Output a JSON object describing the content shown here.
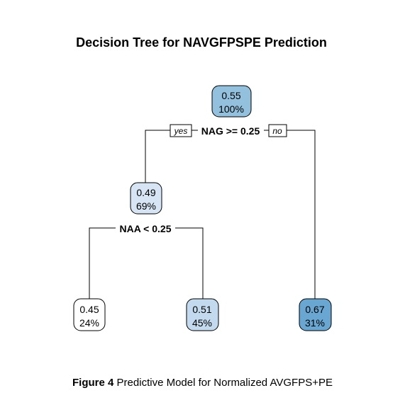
{
  "title": "Decision Tree for NAVGFPSPE Prediction",
  "colors": {
    "node_root": "#92c0dd",
    "node_mid": "#d6e4f3",
    "node_leaf_low": "#ffffff",
    "node_leaf_mid": "#c3d9ee",
    "node_leaf_high": "#6aa6d2",
    "stroke": "#000000"
  },
  "nodes": {
    "root": {
      "value": "0.55",
      "percent": "100%"
    },
    "left": {
      "value": "0.49",
      "percent": "69%"
    },
    "leaf_1": {
      "value": "0.45",
      "percent": "24%"
    },
    "leaf_2": {
      "value": "0.51",
      "percent": "45%"
    },
    "leaf_3": {
      "value": "0.67",
      "percent": "31%"
    }
  },
  "splits": {
    "root": "NAG >= 0.25",
    "left": "NAA < 0.25"
  },
  "branch_labels": {
    "yes": "yes",
    "no": "no"
  },
  "caption": {
    "figure_label": "Figure 4",
    "text": "Predictive Model for Normalized AVGFPS+PE"
  }
}
